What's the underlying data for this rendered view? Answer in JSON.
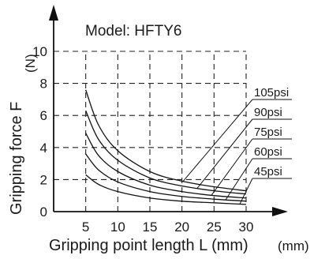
{
  "chart_data": {
    "type": "line",
    "title": "Model: HFTY6",
    "xlabel": "Gripping point length L (mm)",
    "xlabel_extra": "(mm)",
    "ylabel": "Gripping force F",
    "yunit": "(N)",
    "xlim": [
      0,
      30
    ],
    "ylim": [
      0,
      10
    ],
    "x_ticks": [
      5,
      10,
      15,
      20,
      25,
      30
    ],
    "y_ticks": [
      0,
      2,
      4,
      6,
      8,
      10
    ],
    "grid": true,
    "series": [
      {
        "name": "105psi",
        "x": [
          5,
          7,
          10,
          15,
          20,
          25,
          30
        ],
        "y": [
          7.6,
          5.4,
          3.8,
          2.5,
          1.9,
          1.55,
          1.3
        ]
      },
      {
        "name": "90psi",
        "x": [
          5,
          7,
          10,
          15,
          20,
          25,
          30
        ],
        "y": [
          6.3,
          4.5,
          3.2,
          2.1,
          1.6,
          1.3,
          1.1
        ]
      },
      {
        "name": "75psi",
        "x": [
          5,
          7,
          10,
          15,
          20,
          25,
          30
        ],
        "y": [
          4.9,
          3.5,
          2.5,
          1.65,
          1.25,
          1.0,
          0.85
        ]
      },
      {
        "name": "60psi",
        "x": [
          5,
          7,
          10,
          15,
          20,
          25,
          30
        ],
        "y": [
          3.6,
          2.6,
          1.85,
          1.25,
          0.95,
          0.78,
          0.65
        ]
      },
      {
        "name": "45psi",
        "x": [
          5,
          7,
          10,
          15,
          20,
          25,
          30
        ],
        "y": [
          2.3,
          1.7,
          1.25,
          0.85,
          0.65,
          0.55,
          0.45
        ]
      }
    ]
  }
}
